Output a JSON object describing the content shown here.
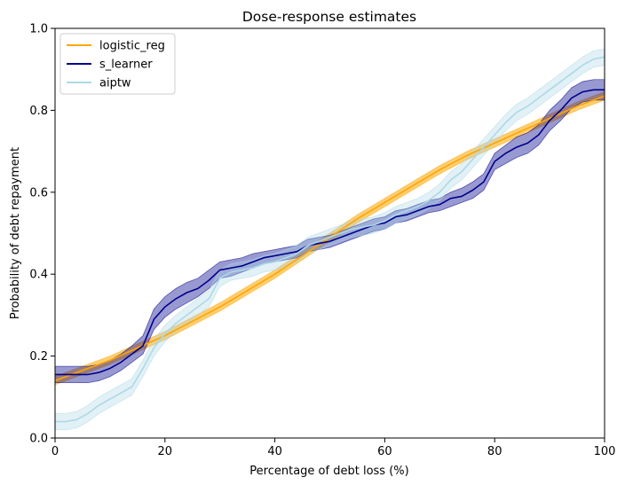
{
  "chart_data": {
    "type": "line",
    "title": "Dose-response estimates",
    "xlabel": "Percentage of debt loss (%)",
    "ylabel": "Probability of debt repayment",
    "xlim": [
      0,
      100
    ],
    "ylim": [
      0.0,
      1.0
    ],
    "x_ticks": [
      "0",
      "20",
      "40",
      "60",
      "80",
      "100"
    ],
    "y_ticks": [
      "0.0",
      "0.2",
      "0.4",
      "0.6",
      "0.8",
      "1.0"
    ],
    "grid": false,
    "legend_position": "top-left",
    "series": [
      {
        "name": "logistic_reg",
        "color": "#FFA500",
        "band_color": "#FFA500",
        "x": [
          0,
          5,
          10,
          15,
          20,
          25,
          30,
          35,
          40,
          45,
          50,
          55,
          60,
          65,
          70,
          75,
          80,
          85,
          90,
          95,
          100
        ],
        "y": [
          0.14,
          0.165,
          0.19,
          0.22,
          0.25,
          0.285,
          0.32,
          0.36,
          0.4,
          0.445,
          0.49,
          0.535,
          0.575,
          0.615,
          0.655,
          0.69,
          0.72,
          0.75,
          0.78,
          0.81,
          0.835
        ],
        "lower": [
          0.13,
          0.155,
          0.18,
          0.21,
          0.24,
          0.275,
          0.31,
          0.35,
          0.39,
          0.435,
          0.48,
          0.525,
          0.565,
          0.605,
          0.645,
          0.68,
          0.71,
          0.74,
          0.77,
          0.8,
          0.825
        ],
        "upper": [
          0.15,
          0.175,
          0.2,
          0.23,
          0.26,
          0.295,
          0.33,
          0.37,
          0.41,
          0.455,
          0.5,
          0.545,
          0.585,
          0.625,
          0.665,
          0.7,
          0.73,
          0.76,
          0.79,
          0.82,
          0.845
        ]
      },
      {
        "name": "s_learner",
        "color": "#00008B",
        "band_color": "#00008B",
        "x": [
          0,
          2,
          4,
          6,
          8,
          10,
          12,
          14,
          16,
          18,
          20,
          22,
          24,
          26,
          28,
          30,
          32,
          34,
          36,
          38,
          40,
          42,
          44,
          46,
          48,
          50,
          52,
          54,
          56,
          58,
          60,
          62,
          64,
          66,
          68,
          70,
          72,
          74,
          76,
          78,
          80,
          82,
          84,
          86,
          88,
          90,
          92,
          94,
          96,
          98,
          100
        ],
        "y": [
          0.155,
          0.155,
          0.155,
          0.155,
          0.16,
          0.17,
          0.185,
          0.205,
          0.225,
          0.29,
          0.32,
          0.34,
          0.355,
          0.365,
          0.385,
          0.41,
          0.415,
          0.42,
          0.43,
          0.44,
          0.445,
          0.45,
          0.455,
          0.47,
          0.475,
          0.48,
          0.49,
          0.5,
          0.51,
          0.52,
          0.525,
          0.54,
          0.545,
          0.555,
          0.565,
          0.57,
          0.585,
          0.59,
          0.605,
          0.625,
          0.675,
          0.695,
          0.71,
          0.72,
          0.74,
          0.775,
          0.8,
          0.83,
          0.845,
          0.85,
          0.85
        ],
        "lower": [
          0.135,
          0.135,
          0.135,
          0.135,
          0.14,
          0.15,
          0.165,
          0.185,
          0.205,
          0.265,
          0.295,
          0.315,
          0.33,
          0.345,
          0.365,
          0.39,
          0.395,
          0.405,
          0.415,
          0.425,
          0.43,
          0.435,
          0.44,
          0.455,
          0.46,
          0.465,
          0.475,
          0.485,
          0.495,
          0.505,
          0.51,
          0.525,
          0.53,
          0.54,
          0.55,
          0.555,
          0.565,
          0.575,
          0.585,
          0.605,
          0.655,
          0.67,
          0.685,
          0.695,
          0.715,
          0.75,
          0.775,
          0.805,
          0.82,
          0.825,
          0.825
        ],
        "upper": [
          0.175,
          0.175,
          0.175,
          0.175,
          0.18,
          0.19,
          0.205,
          0.225,
          0.25,
          0.315,
          0.345,
          0.365,
          0.38,
          0.39,
          0.41,
          0.43,
          0.435,
          0.44,
          0.45,
          0.455,
          0.46,
          0.465,
          0.47,
          0.485,
          0.49,
          0.495,
          0.505,
          0.515,
          0.525,
          0.535,
          0.54,
          0.555,
          0.56,
          0.57,
          0.58,
          0.585,
          0.6,
          0.61,
          0.625,
          0.645,
          0.695,
          0.715,
          0.735,
          0.745,
          0.765,
          0.8,
          0.825,
          0.855,
          0.87,
          0.875,
          0.875
        ]
      },
      {
        "name": "aiptw",
        "color": "#ADD8E6",
        "band_color": "#ADD8E6",
        "x": [
          0,
          2,
          4,
          6,
          8,
          10,
          12,
          14,
          16,
          18,
          20,
          22,
          24,
          26,
          28,
          30,
          32,
          34,
          36,
          38,
          40,
          42,
          44,
          46,
          48,
          50,
          52,
          54,
          56,
          58,
          60,
          62,
          64,
          66,
          68,
          70,
          72,
          74,
          76,
          78,
          80,
          82,
          84,
          86,
          88,
          90,
          92,
          94,
          96,
          98,
          100
        ],
        "y": [
          0.04,
          0.04,
          0.045,
          0.06,
          0.08,
          0.095,
          0.11,
          0.125,
          0.17,
          0.22,
          0.255,
          0.28,
          0.3,
          0.32,
          0.34,
          0.39,
          0.405,
          0.41,
          0.415,
          0.425,
          0.43,
          0.44,
          0.45,
          0.47,
          0.48,
          0.49,
          0.5,
          0.51,
          0.515,
          0.52,
          0.53,
          0.545,
          0.555,
          0.565,
          0.58,
          0.6,
          0.63,
          0.65,
          0.68,
          0.71,
          0.74,
          0.77,
          0.795,
          0.81,
          0.83,
          0.85,
          0.87,
          0.89,
          0.91,
          0.925,
          0.93
        ],
        "lower": [
          0.02,
          0.02,
          0.025,
          0.04,
          0.06,
          0.075,
          0.09,
          0.105,
          0.15,
          0.2,
          0.235,
          0.26,
          0.28,
          0.3,
          0.32,
          0.37,
          0.385,
          0.39,
          0.395,
          0.405,
          0.41,
          0.42,
          0.43,
          0.45,
          0.46,
          0.47,
          0.48,
          0.49,
          0.495,
          0.5,
          0.51,
          0.525,
          0.535,
          0.545,
          0.56,
          0.58,
          0.61,
          0.63,
          0.66,
          0.69,
          0.72,
          0.75,
          0.775,
          0.79,
          0.81,
          0.83,
          0.85,
          0.87,
          0.89,
          0.905,
          0.91
        ],
        "upper": [
          0.06,
          0.06,
          0.065,
          0.08,
          0.1,
          0.115,
          0.13,
          0.145,
          0.19,
          0.24,
          0.275,
          0.3,
          0.32,
          0.34,
          0.36,
          0.41,
          0.425,
          0.43,
          0.435,
          0.445,
          0.45,
          0.46,
          0.47,
          0.49,
          0.5,
          0.51,
          0.52,
          0.53,
          0.535,
          0.54,
          0.55,
          0.565,
          0.575,
          0.585,
          0.6,
          0.62,
          0.65,
          0.67,
          0.7,
          0.73,
          0.76,
          0.79,
          0.815,
          0.83,
          0.85,
          0.87,
          0.89,
          0.91,
          0.93,
          0.945,
          0.95
        ]
      }
    ]
  }
}
